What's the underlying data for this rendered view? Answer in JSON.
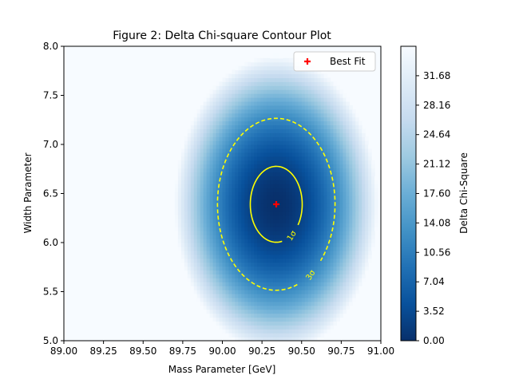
{
  "chart_data": {
    "type": "heatmap",
    "title": "Figure 2: Delta Chi-square Contour Plot",
    "xlabel": "Mass Parameter [GeV]",
    "ylabel": "Width Parameter",
    "xlim": [
      89.0,
      91.0
    ],
    "ylim": [
      5.0,
      8.0
    ],
    "x_ticks": [
      "89.00",
      "89.25",
      "89.50",
      "89.75",
      "90.00",
      "90.25",
      "90.50",
      "90.75",
      "91.00"
    ],
    "y_ticks": [
      "5.0",
      "5.5",
      "6.0",
      "6.5",
      "7.0",
      "7.5",
      "8.0"
    ],
    "colorbar": {
      "label": "Delta Chi-Square",
      "range": [
        0,
        35.2
      ],
      "ticks": [
        "0.00",
        "3.52",
        "7.04",
        "10.56",
        "14.08",
        "17.60",
        "21.12",
        "24.64",
        "28.16",
        "31.68"
      ],
      "colormap": [
        "#08306b",
        "#08519c",
        "#2171b5",
        "#4292c6",
        "#6baed6",
        "#9ecae1",
        "#c6dbef",
        "#deebf7",
        "#f7fbff"
      ]
    },
    "best_fit": {
      "x": 90.34,
      "y": 6.39,
      "label": "Best Fit",
      "color": "#ff0000"
    },
    "sigma_x": 0.108,
    "sigma_y": 0.255,
    "contours": [
      {
        "label": "1σ",
        "delta_chi2": 2.3,
        "style": "solid",
        "color": "#ffff00"
      },
      {
        "label": "3σ",
        "delta_chi2": 11.8,
        "style": "dashed",
        "color": "#ffff00"
      }
    ],
    "legend": {
      "location": "upper-right",
      "entries": [
        "Best Fit"
      ]
    }
  }
}
